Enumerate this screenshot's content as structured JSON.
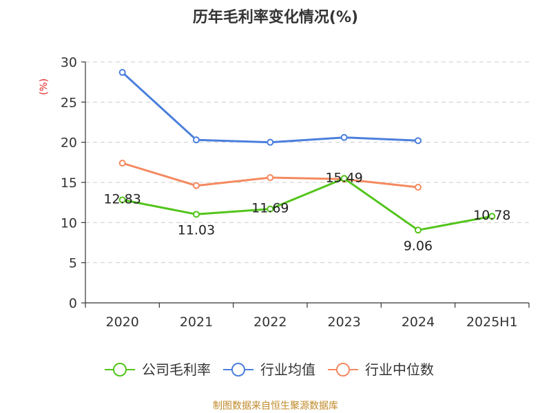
{
  "chart_data": {
    "type": "line",
    "title": "历年毛利率变化情况(%)",
    "ylabel": "(%)",
    "xlabel": "",
    "categories": [
      "2020",
      "2021",
      "2022",
      "2023",
      "2024",
      "2025H1"
    ],
    "ylim": [
      0,
      30
    ],
    "yticks": [
      0,
      5,
      10,
      15,
      20,
      25,
      30
    ],
    "grid": true,
    "legend_position": "bottom",
    "series": [
      {
        "name": "公司毛利率",
        "color": "#52c41a",
        "values": [
          12.83,
          11.03,
          11.69,
          15.49,
          9.06,
          10.78
        ],
        "show_labels": true
      },
      {
        "name": "行业均值",
        "color": "#4a7fdc",
        "values": [
          28.7,
          20.3,
          20.0,
          20.6,
          20.2,
          null
        ],
        "show_labels": false
      },
      {
        "name": "行业中位数",
        "color": "#f4895f",
        "values": [
          17.4,
          14.6,
          15.6,
          15.4,
          14.4,
          null
        ],
        "show_labels": false
      }
    ],
    "source": "制图数据来自恒生聚源数据库"
  }
}
